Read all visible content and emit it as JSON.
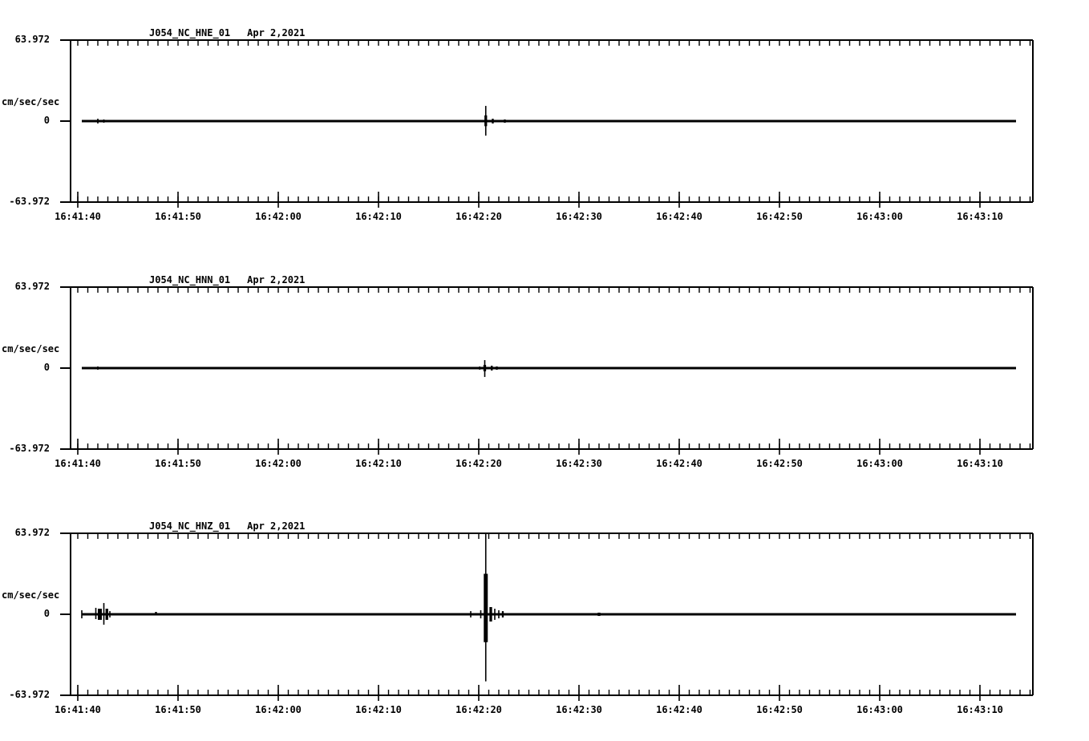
{
  "page": {
    "background": "#ffffff",
    "foreground": "#000000"
  },
  "panels": [
    {
      "id": "hne",
      "title": "J054_NC_HNE_01",
      "date": "Apr 2,2021"
    },
    {
      "id": "hnn",
      "title": "J054_NC_HNN_01",
      "date": "Apr 2,2021"
    },
    {
      "id": "hnz",
      "title": "J054_NC_HNZ_01",
      "date": "Apr 2,2021"
    }
  ],
  "y_axis": {
    "max_label": "63.972",
    "zero_label": "0",
    "min_label": "-63.972",
    "unit_label": "cm/sec/sec"
  },
  "chart_data": [
    {
      "type": "line",
      "title": "J054_NC_HNE_01  Apr 2,2021",
      "ylabel": "cm/sec/sec",
      "ylim": [
        -63.972,
        63.972
      ],
      "ytick_labels": [
        "63.972",
        "0",
        "-63.972"
      ],
      "x_tick_labels": [
        "16:41:40",
        "16:41:50",
        "16:42:00",
        "16:42:10",
        "16:42:20",
        "16:42:30",
        "16:42:40",
        "16:42:50",
        "16:43:00",
        "16:43:10"
      ],
      "x_major_interval_s": 10,
      "x_minor_interval_s": 1,
      "grid": false,
      "baseline_value": 0,
      "trace_start_s": 0.4,
      "trace_end_s": 93.6,
      "spikes": [
        {
          "t": 2.0,
          "up": 1.9,
          "down": 1.9,
          "w": 1
        },
        {
          "t": 2.6,
          "up": 1.3,
          "down": 1.3,
          "w": 1
        },
        {
          "t": 40.7,
          "up": 12.0,
          "down": 11.5,
          "w": 1
        },
        {
          "t": 40.7,
          "up": 4.5,
          "down": 4.0,
          "w": 3
        },
        {
          "t": 41.4,
          "up": 1.9,
          "down": 1.9,
          "w": 2
        },
        {
          "t": 42.6,
          "up": 1.3,
          "down": 1.3,
          "w": 2
        },
        {
          "t": 62.6,
          "up": 0.9,
          "down": 0.9,
          "w": 2
        }
      ]
    },
    {
      "type": "line",
      "title": "J054_NC_HNN_01  Apr 2,2021",
      "ylabel": "cm/sec/sec",
      "ylim": [
        -63.972,
        63.972
      ],
      "ytick_labels": [
        "63.972",
        "0",
        "-63.972"
      ],
      "x_tick_labels": [
        "16:41:40",
        "16:41:50",
        "16:42:00",
        "16:42:10",
        "16:42:20",
        "16:42:30",
        "16:42:40",
        "16:42:50",
        "16:43:00",
        "16:43:10"
      ],
      "x_major_interval_s": 10,
      "x_minor_interval_s": 1,
      "grid": false,
      "baseline_value": 0,
      "trace_start_s": 0.4,
      "trace_end_s": 93.6,
      "spikes": [
        {
          "t": 2.0,
          "up": 1.3,
          "down": 1.3,
          "w": 1
        },
        {
          "t": 40.1,
          "up": 1.3,
          "down": 1.3,
          "w": 1
        },
        {
          "t": 40.6,
          "up": 6.3,
          "down": 7.0,
          "w": 1
        },
        {
          "t": 40.6,
          "up": 2.5,
          "down": 2.5,
          "w": 3
        },
        {
          "t": 41.3,
          "up": 1.9,
          "down": 1.9,
          "w": 2
        },
        {
          "t": 41.8,
          "up": 1.3,
          "down": 1.3,
          "w": 2
        },
        {
          "t": 57.0,
          "up": 0.9,
          "down": 0.9,
          "w": 2
        }
      ]
    },
    {
      "type": "line",
      "title": "J054_NC_HNZ_01  Apr 2,2021",
      "ylabel": "cm/sec/sec",
      "ylim": [
        -63.972,
        63.972
      ],
      "ytick_labels": [
        "63.972",
        "0",
        "-63.972"
      ],
      "x_tick_labels": [
        "16:41:40",
        "16:41:50",
        "16:42:00",
        "16:42:10",
        "16:42:20",
        "16:42:30",
        "16:42:40",
        "16:42:50",
        "16:43:00",
        "16:43:10"
      ],
      "x_major_interval_s": 10,
      "x_minor_interval_s": 1,
      "grid": false,
      "baseline_value": 0,
      "trace_start_s": 0.4,
      "trace_end_s": 93.6,
      "spikes": [
        {
          "t": 0.4,
          "up": 3.2,
          "down": 3.2,
          "w": 1
        },
        {
          "t": 1.8,
          "up": 5.1,
          "down": 3.8,
          "w": 1
        },
        {
          "t": 2.2,
          "up": 4.4,
          "down": 4.4,
          "w": 4
        },
        {
          "t": 2.6,
          "up": 8.9,
          "down": 8.2,
          "w": 1
        },
        {
          "t": 2.9,
          "up": 4.4,
          "down": 4.4,
          "w": 3
        },
        {
          "t": 3.2,
          "up": 2.5,
          "down": 2.5,
          "w": 1
        },
        {
          "t": 7.8,
          "up": 1.9,
          "down": 0.8,
          "w": 2
        },
        {
          "t": 39.2,
          "up": 2.5,
          "down": 2.5,
          "w": 1
        },
        {
          "t": 40.2,
          "up": 3.2,
          "down": 3.2,
          "w": 1
        },
        {
          "t": 40.7,
          "up": 63.8,
          "down": 53.0,
          "w": 1
        },
        {
          "t": 40.7,
          "up": 32.0,
          "down": 22.0,
          "w": 4
        },
        {
          "t": 41.2,
          "up": 5.7,
          "down": 5.7,
          "w": 3
        },
        {
          "t": 41.6,
          "up": 4.4,
          "down": 4.4,
          "w": 1
        },
        {
          "t": 42.0,
          "up": 3.2,
          "down": 3.2,
          "w": 1
        },
        {
          "t": 42.4,
          "up": 2.5,
          "down": 2.5,
          "w": 2
        },
        {
          "t": 52.0,
          "up": 1.3,
          "down": 1.3,
          "w": 3
        }
      ]
    }
  ]
}
